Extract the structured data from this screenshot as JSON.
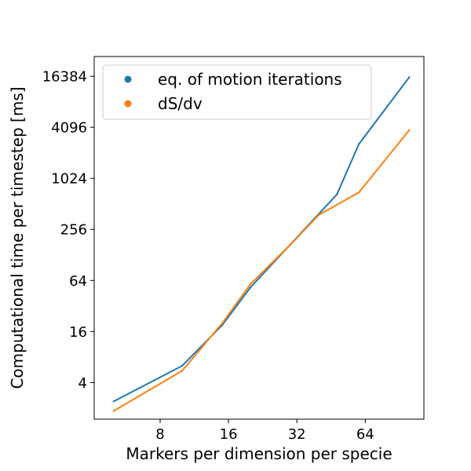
{
  "chart_data": {
    "type": "line",
    "xscale": "log2",
    "yscale": "log2",
    "xlabel": "Markers per dimension per specie",
    "ylabel": "Computational time per timestep [ms]",
    "xlim": [
      4.1,
      116
    ],
    "ylim": [
      1.48,
      28000
    ],
    "xticks": [
      8,
      16,
      32,
      64
    ],
    "xtick_labels": [
      "8",
      "16",
      "32",
      "64"
    ],
    "yticks": [
      4,
      16,
      64,
      256,
      1024,
      4096,
      16384
    ],
    "ytick_labels": [
      "4",
      "16",
      "64",
      "256",
      "1024",
      "4096",
      "16384"
    ],
    "grid": false,
    "legend_position": "top-left",
    "series": [
      {
        "name": "eq. of motion iterations",
        "color": "#1f77b4",
        "x": [
          5,
          10,
          15,
          20,
          48,
          60,
          100
        ],
        "y": [
          2.4,
          6.3,
          19,
          53,
          660,
          2600,
          16000
        ]
      },
      {
        "name": "dS/dv",
        "color": "#ff7f0e",
        "x": [
          5,
          10,
          15,
          20,
          30,
          40,
          60,
          100
        ],
        "y": [
          1.85,
          5.5,
          20,
          58,
          170,
          380,
          700,
          3800
        ]
      }
    ]
  }
}
